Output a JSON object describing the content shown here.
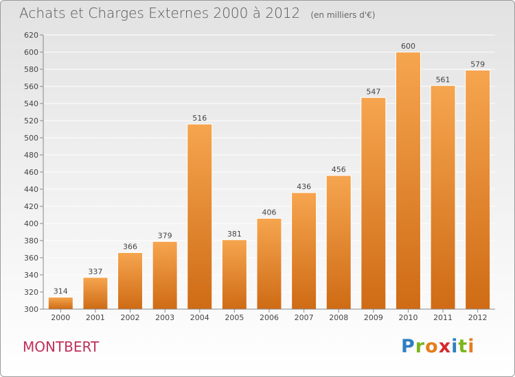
{
  "header": {
    "title": "Achats et Charges Externes 2000 à 2012",
    "subtitle": "(en milliers d'€)"
  },
  "footer": {
    "commune": "MONTBERT",
    "brand_letters": [
      "P",
      "r",
      "o",
      "x",
      "i",
      "t",
      "i"
    ],
    "brand_colors": [
      "#2e7fc1",
      "#7ab51d",
      "#e57d1a",
      "#d6282c",
      "#2e7fc1",
      "#7ab51d",
      "#e57d1a"
    ]
  },
  "colors": {
    "bar_top": "#f6a54f",
    "bar_bottom": "#cf6b15",
    "axis_text": "#444444",
    "grid": "#ffffff"
  },
  "chart_data": {
    "type": "bar",
    "title": "Achats et Charges Externes 2000 à 2012",
    "subtitle": "(en milliers d'€)",
    "categories": [
      "2000",
      "2001",
      "2002",
      "2003",
      "2004",
      "2005",
      "2006",
      "2007",
      "2008",
      "2009",
      "2010",
      "2011",
      "2012"
    ],
    "values": [
      314,
      337,
      366,
      379,
      516,
      381,
      406,
      436,
      456,
      547,
      600,
      561,
      579
    ],
    "ylim": [
      300,
      620
    ],
    "yticks": [
      300,
      320,
      340,
      360,
      380,
      400,
      420,
      440,
      460,
      480,
      500,
      520,
      540,
      560,
      580,
      600,
      620
    ],
    "grid": true,
    "data_labels": true
  }
}
